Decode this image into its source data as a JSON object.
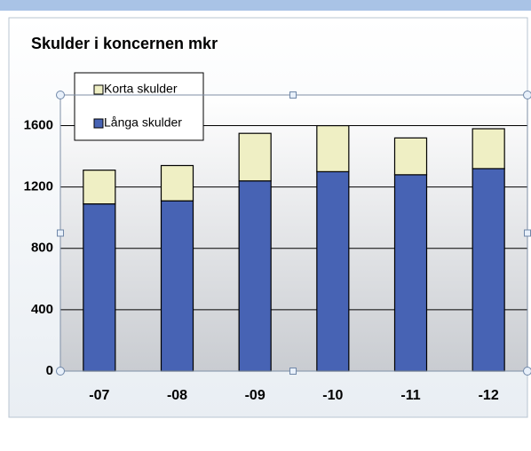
{
  "chart_data": {
    "type": "bar",
    "stacked": true,
    "title": "Skulder i koncernen mkr",
    "categories": [
      "-07",
      "-08",
      "-09",
      "-10",
      "-11",
      "-12"
    ],
    "series": [
      {
        "name": "Långa skulder",
        "color": "#4763b4",
        "values": [
          1090,
          1110,
          1240,
          1300,
          1280,
          1320
        ]
      },
      {
        "name": "Korta skulder",
        "color": "#efefc4",
        "values": [
          220,
          230,
          310,
          300,
          240,
          260
        ]
      }
    ],
    "ylim": [
      0,
      1800
    ],
    "yticks": [
      0,
      400,
      800,
      1200,
      1600
    ],
    "grid": true,
    "legend": "top-left"
  }
}
